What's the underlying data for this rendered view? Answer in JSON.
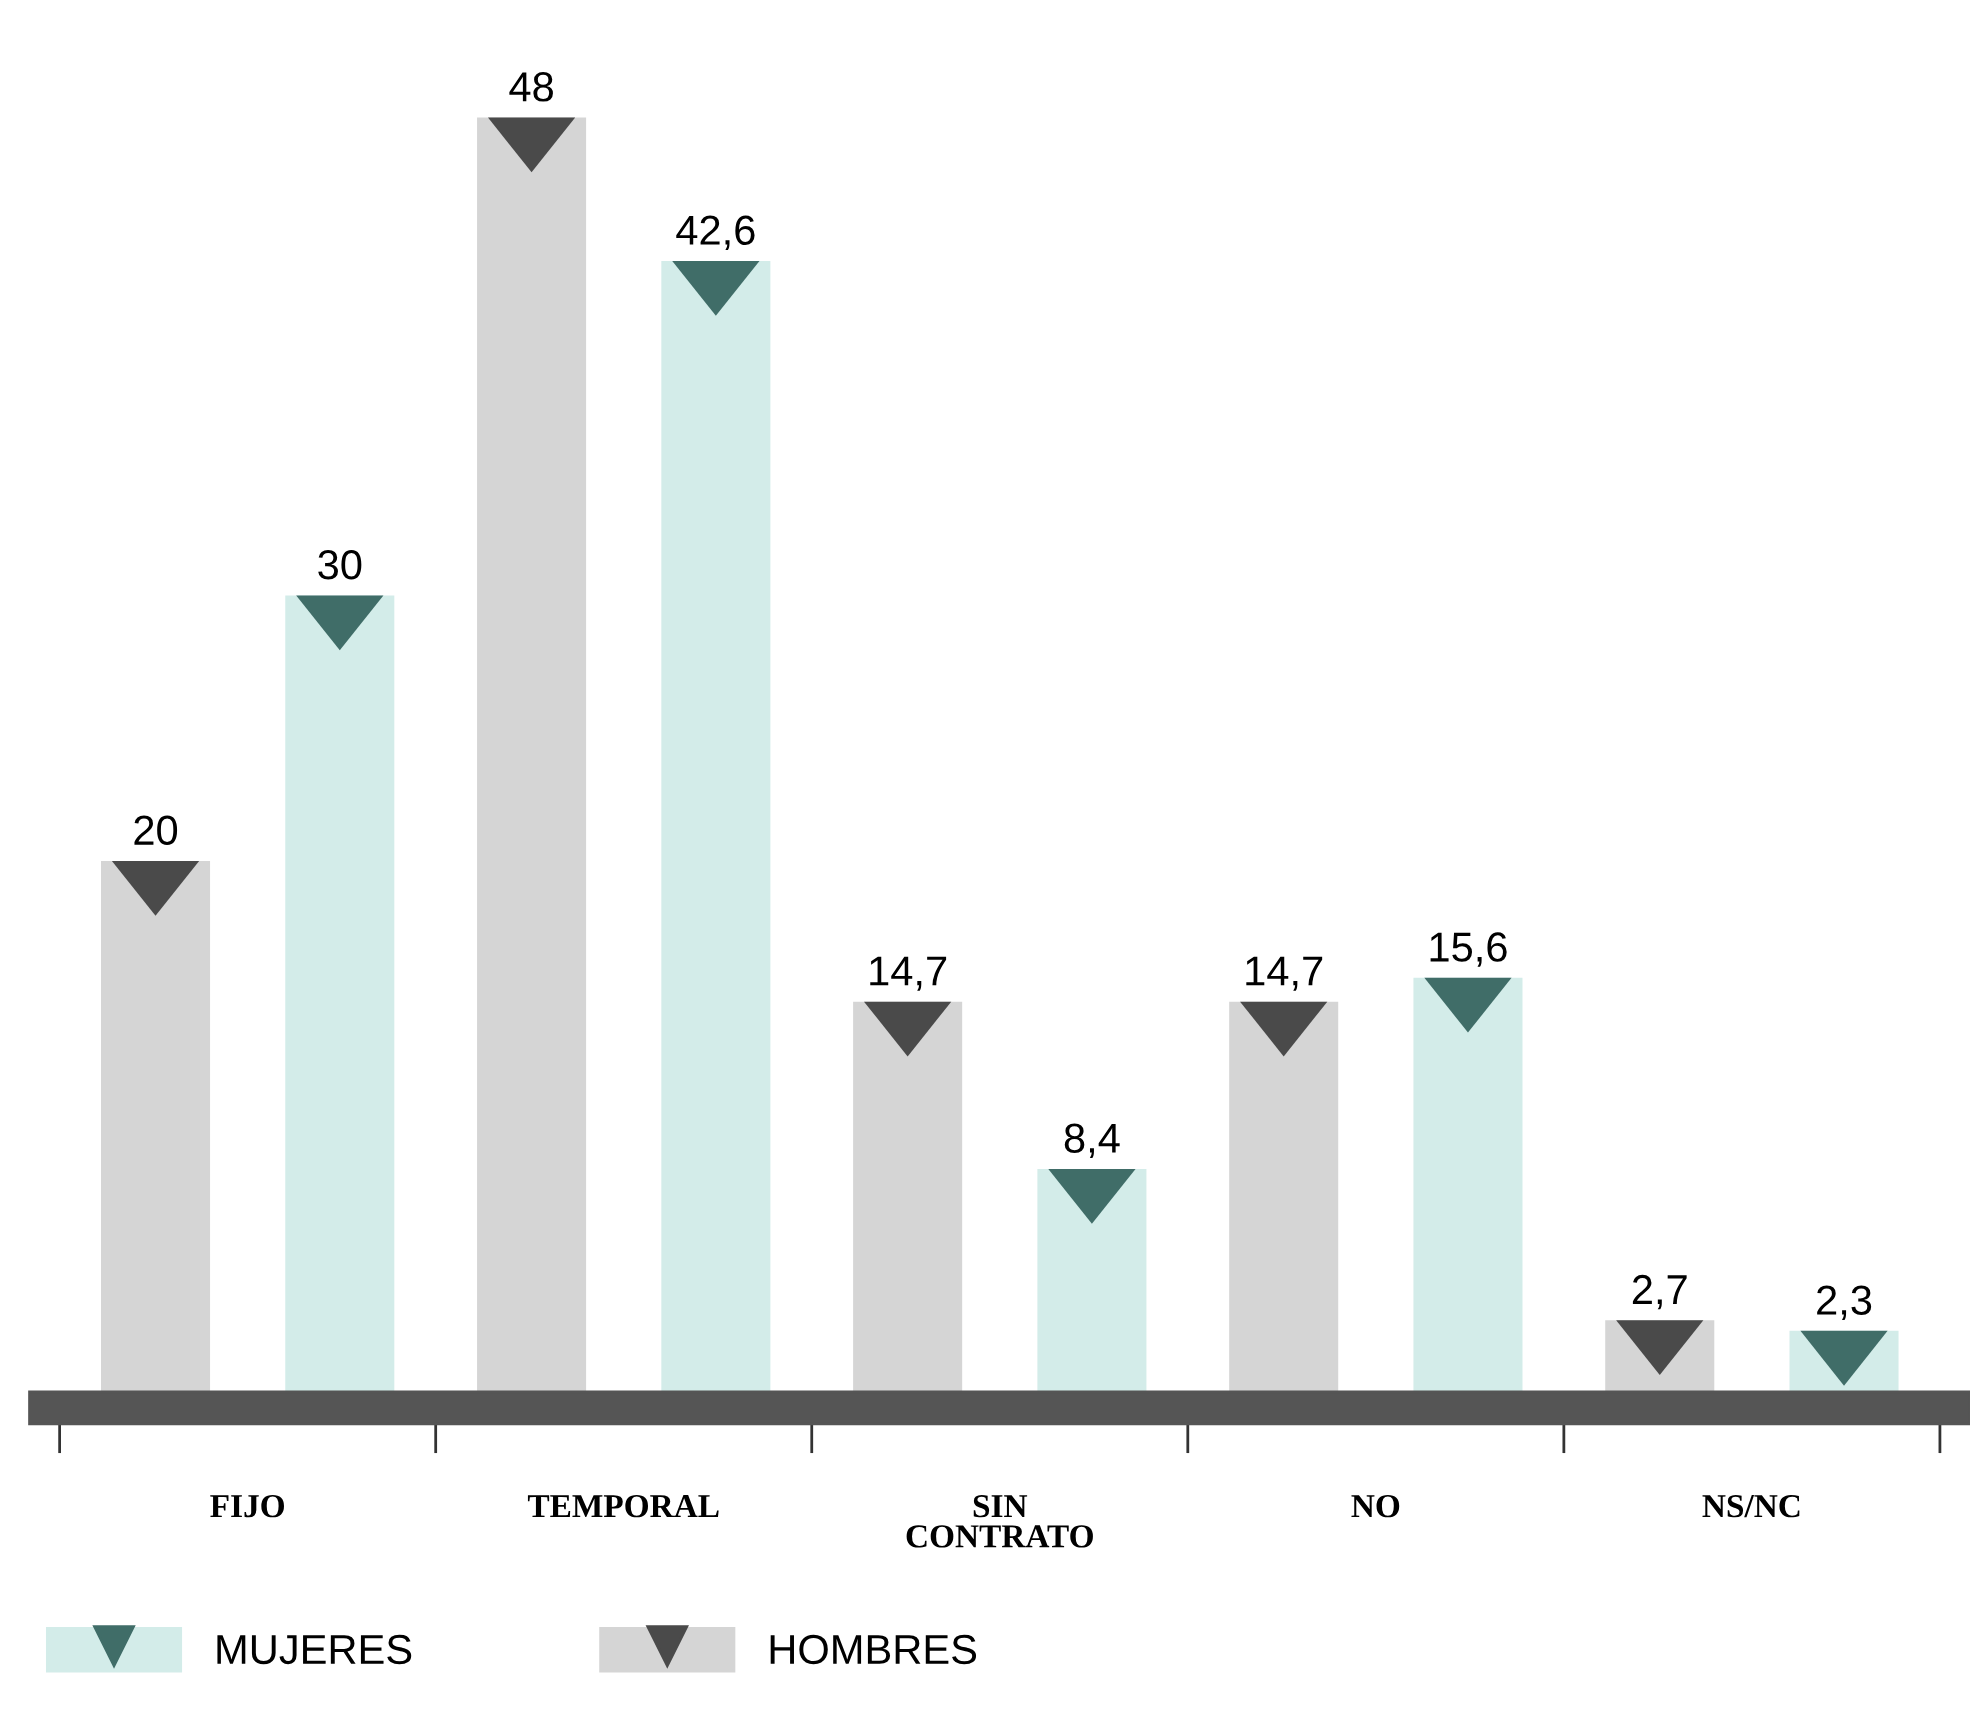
{
  "chart_data": {
    "type": "bar",
    "categories": [
      "FIJO",
      "TEMPORAL",
      "SIN\nCONTRATO",
      "NO",
      "NS/NC"
    ],
    "series": [
      {
        "name": "HOMBRES",
        "color": "#d5d5d5",
        "values": [
          20,
          48,
          14.7,
          14.7,
          2.7
        ],
        "value_labels": [
          "20",
          "48",
          "14,7",
          "14,7",
          "2,7"
        ]
      },
      {
        "name": "MUJERES",
        "color": "#d3ece9",
        "values": [
          30,
          42.6,
          8.4,
          15.6,
          2.3
        ],
        "value_labels": [
          "30",
          "42,6",
          "8,4",
          "15,6",
          "2,3"
        ]
      }
    ],
    "legend": "bottom left",
    "grid": false
  }
}
